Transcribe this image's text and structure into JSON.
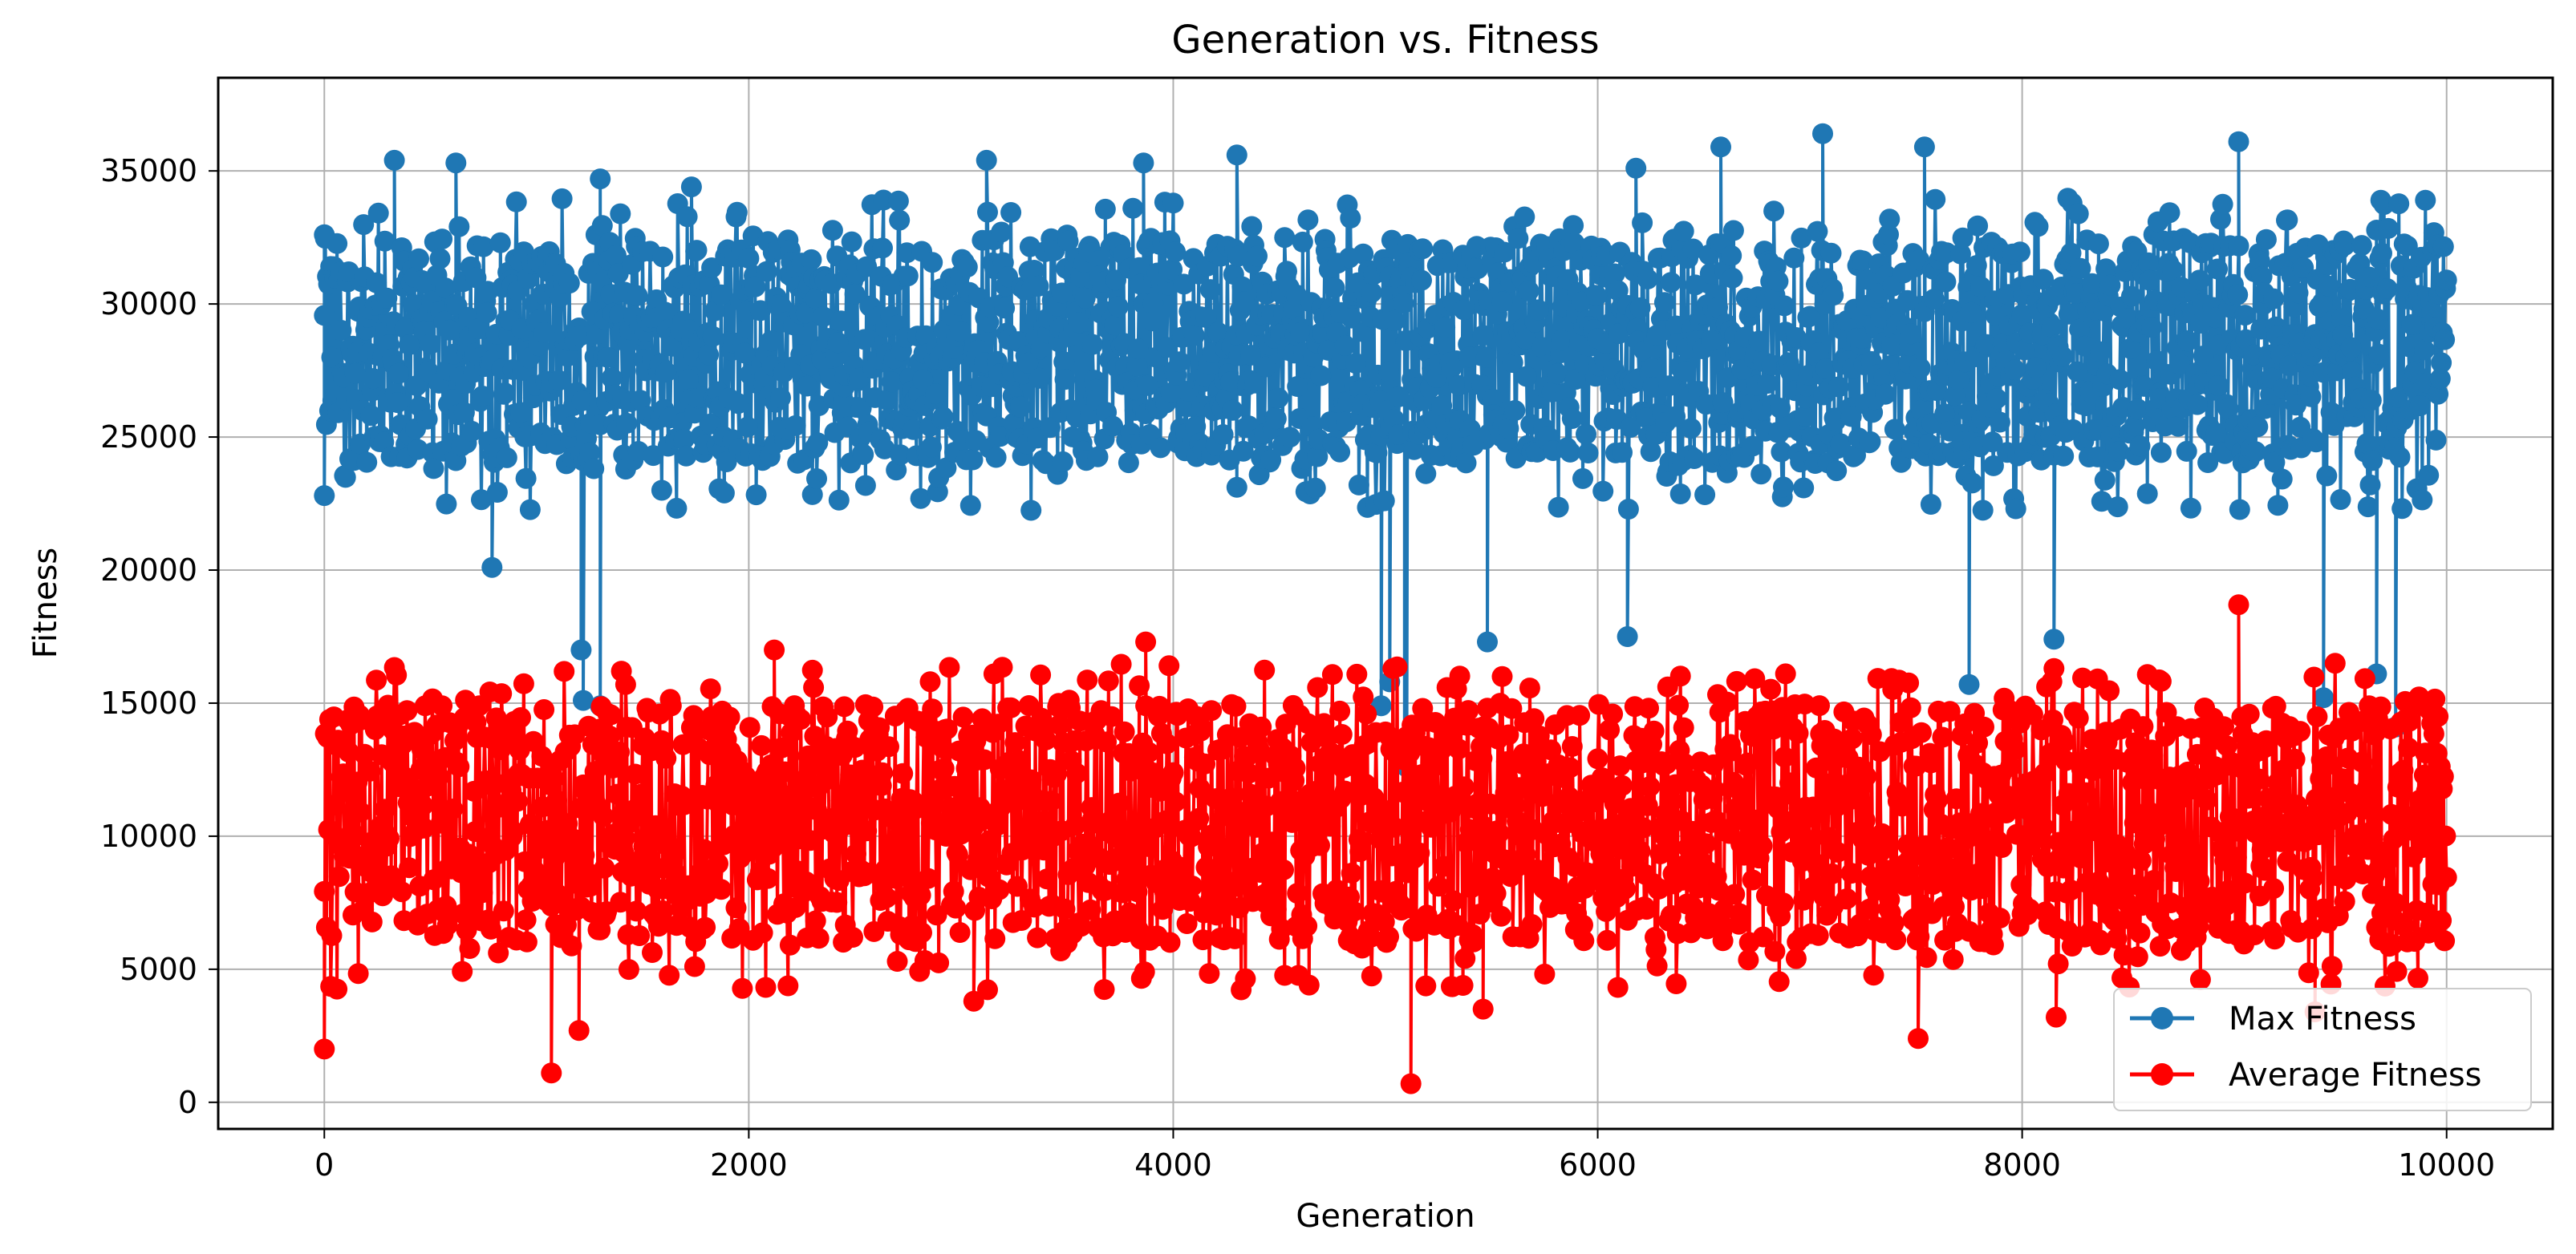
{
  "chart_data": {
    "type": "line",
    "title": "Generation vs. Fitness",
    "xlabel": "Generation",
    "ylabel": "Fitness",
    "xlim": [
      -500,
      10500
    ],
    "ylim": [
      -1000,
      38500
    ],
    "grid": true,
    "legend_position": "lower-right",
    "x_ticks": [
      0,
      2000,
      4000,
      6000,
      8000,
      10000
    ],
    "x_tick_labels": [
      "0",
      "2000",
      "4000",
      "6000",
      "8000",
      "10000"
    ],
    "y_ticks": [
      0,
      5000,
      10000,
      15000,
      20000,
      25000,
      30000,
      35000
    ],
    "y_tick_labels": [
      "0",
      "5000",
      "10000",
      "15000",
      "20000",
      "25000",
      "30000",
      "35000"
    ],
    "x_range": [
      0,
      10000
    ],
    "series": [
      {
        "name": "Max Fitness",
        "color": "#1f77b4",
        "marker": "circle",
        "band_low": 24000,
        "band_high": 32500,
        "peaks": [
          [
            0,
            32600
          ],
          [
            330,
            35400
          ],
          [
            620,
            35300
          ],
          [
            1300,
            34700
          ],
          [
            1730,
            34400
          ],
          [
            3120,
            35400
          ],
          [
            3860,
            35300
          ],
          [
            4300,
            35600
          ],
          [
            6180,
            35100
          ],
          [
            6580,
            35900
          ],
          [
            7060,
            36400
          ],
          [
            7540,
            35900
          ],
          [
            9020,
            36100
          ]
        ],
        "dips": [
          [
            0,
            22800
          ],
          [
            790,
            20100
          ],
          [
            1210,
            17000
          ],
          [
            1220,
            15100
          ],
          [
            1300,
            14900
          ],
          [
            4980,
            14900
          ],
          [
            5020,
            15800
          ],
          [
            5090,
            12900
          ],
          [
            5100,
            12600
          ],
          [
            5480,
            17300
          ],
          [
            6140,
            17500
          ],
          [
            7750,
            15700
          ],
          [
            8150,
            17400
          ],
          [
            9420,
            15200
          ],
          [
            9670,
            16100
          ],
          [
            9760,
            14100
          ]
        ]
      },
      {
        "name": "Average Fitness",
        "color": "#ff0000",
        "marker": "circle",
        "band_low": 6000,
        "band_high": 15000,
        "peaks": [
          [
            2120,
            17000
          ],
          [
            3870,
            17300
          ],
          [
            8150,
            16300
          ],
          [
            9020,
            18700
          ],
          [
            9960,
            14500
          ]
        ],
        "dips": [
          [
            0,
            2000
          ],
          [
            1070,
            1100
          ],
          [
            1200,
            2700
          ],
          [
            3060,
            3800
          ],
          [
            5120,
            700
          ],
          [
            5460,
            3500
          ],
          [
            7510,
            2400
          ],
          [
            8160,
            3200
          ],
          [
            9380,
            3400
          ]
        ]
      }
    ]
  }
}
